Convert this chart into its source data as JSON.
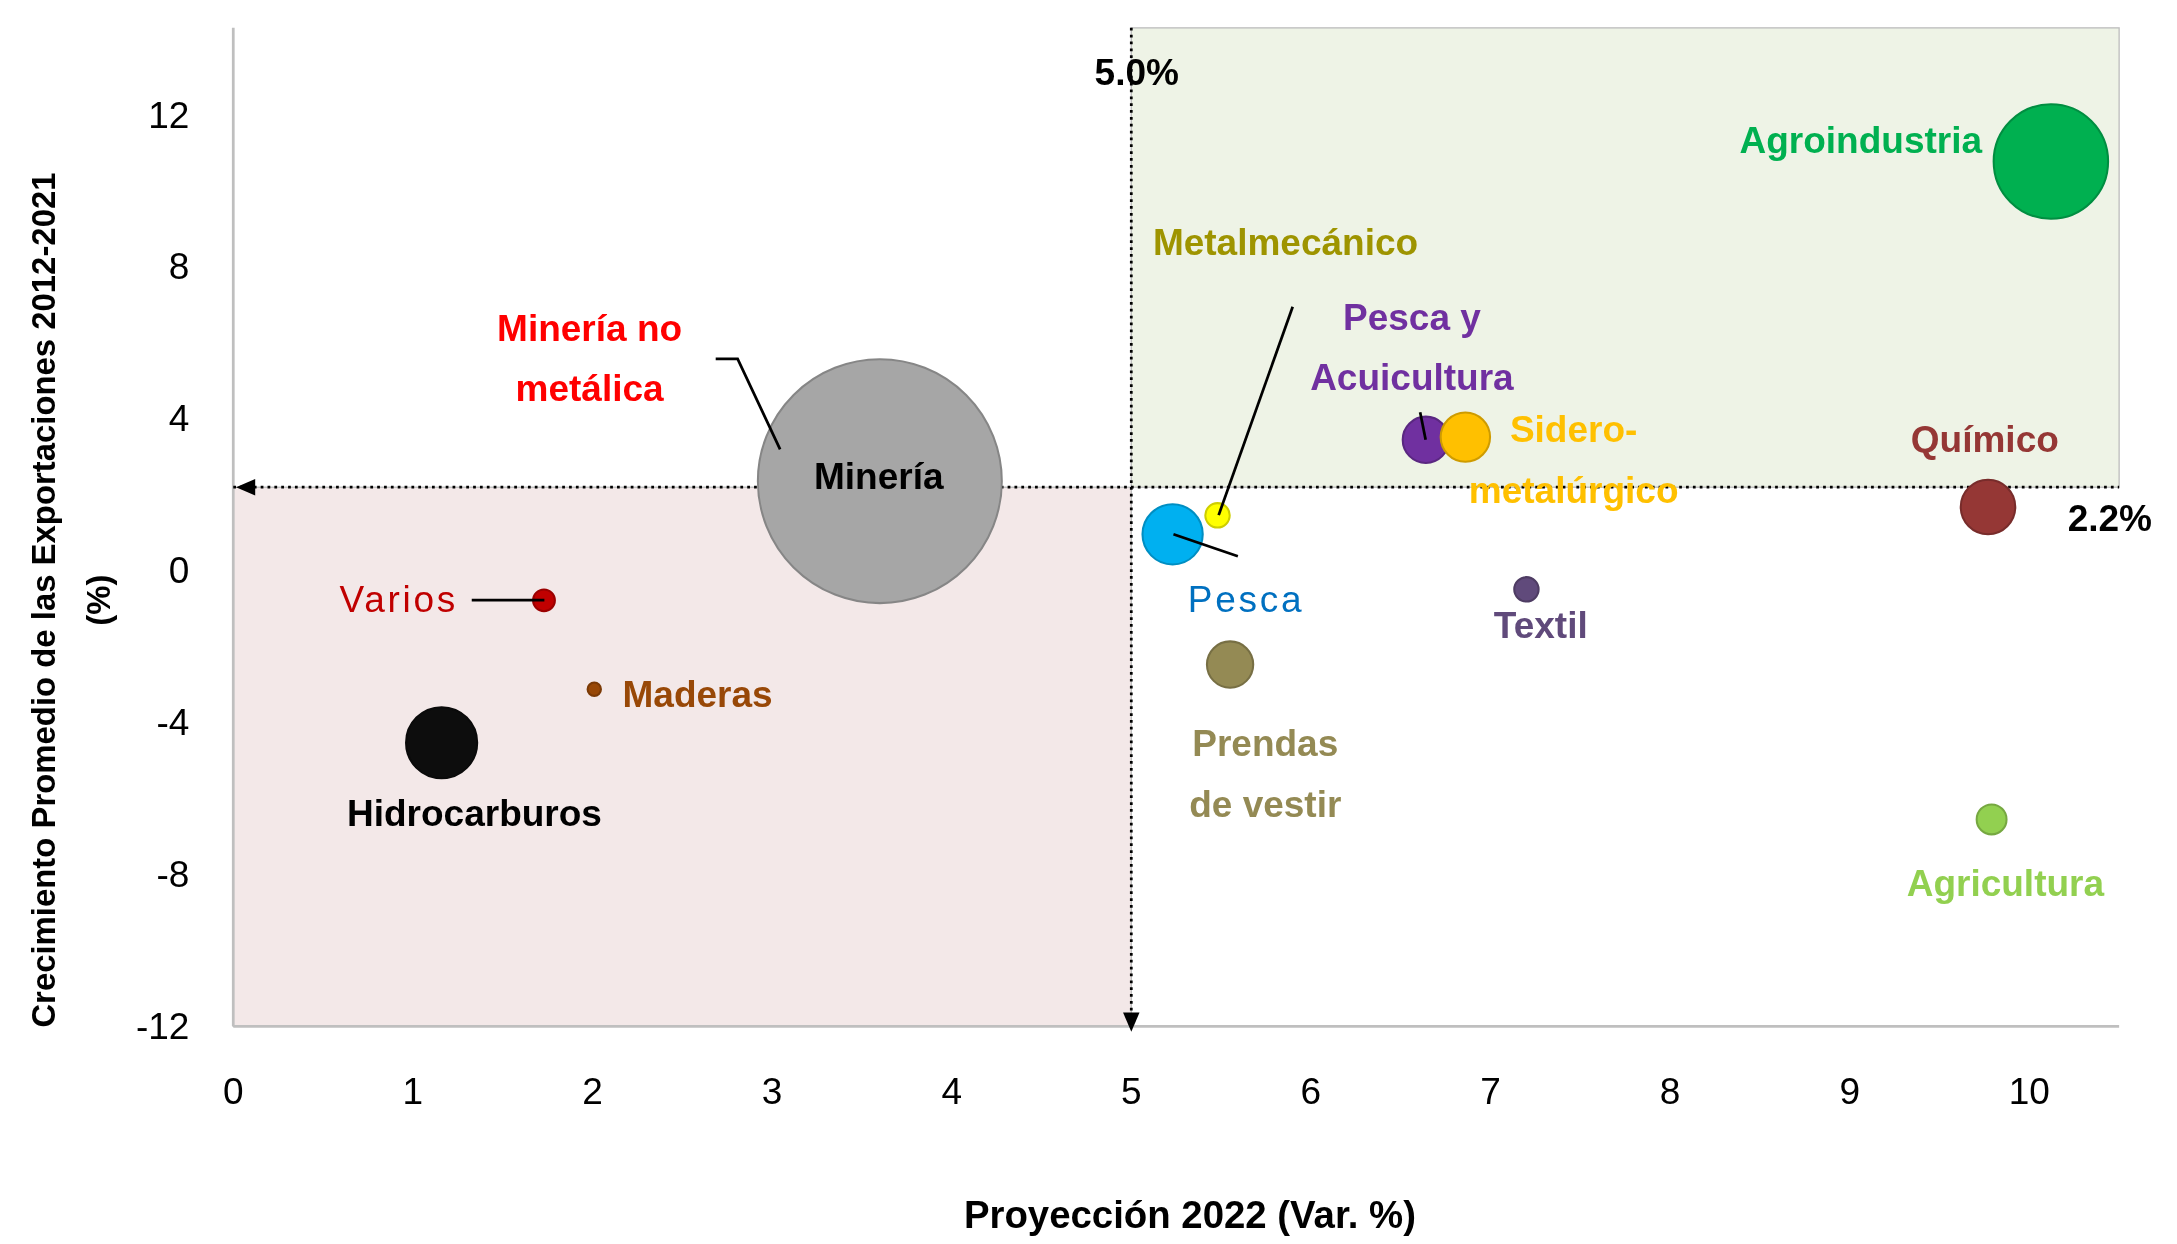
{
  "chart_data": {
    "type": "bubble",
    "xlabel": "Proyección 2022 (Var. %)",
    "ylabel": "Crecimiento Promedio de las Exportaciones 2012-2021 (%)",
    "xlim": [
      0,
      10.5
    ],
    "ylim": [
      -12,
      14.3
    ],
    "xticks": [
      0,
      1,
      2,
      3,
      4,
      5,
      6,
      7,
      8,
      9,
      10
    ],
    "yticks": [
      -12,
      -8,
      -4,
      0,
      4,
      8,
      12
    ],
    "grid": false,
    "series": [
      {
        "name": "Agroindustria",
        "color": "#00b050",
        "x": [
          10.12
        ],
        "values": [
          10.78
        ],
        "sizes": [
          0.22
        ]
      },
      {
        "name": "Metalmecánico",
        "color": "#ffff00",
        "x": [
          5.48
        ],
        "values": [
          1.46
        ],
        "sizes": [
          0.01
        ]
      },
      {
        "name": "Pesca y Acuicultura",
        "color": "#7030a0",
        "x": [
          6.64
        ],
        "values": [
          3.45
        ],
        "sizes": [
          0.036
        ]
      },
      {
        "name": "Sidero-metalúrgico",
        "color": "#ffc000",
        "x": [
          6.86
        ],
        "values": [
          3.52
        ],
        "sizes": [
          0.041
        ]
      },
      {
        "name": "Químico",
        "color": "#953735",
        "x": [
          9.77
        ],
        "values": [
          1.68
        ],
        "sizes": [
          0.05
        ]
      },
      {
        "name": "Pesca",
        "color": "#00b0f0",
        "x": [
          5.23
        ],
        "values": [
          0.96
        ],
        "sizes": [
          0.061
        ]
      },
      {
        "name": "Textil",
        "color": "#604a7b",
        "x": [
          7.2
        ],
        "values": [
          -0.49
        ],
        "sizes": [
          0.01
        ]
      },
      {
        "name": "Prendas de vestir",
        "color": "#948a54",
        "x": [
          5.55
        ],
        "values": [
          -2.47
        ],
        "sizes": [
          0.036
        ]
      },
      {
        "name": "Agricultura",
        "color": "#92d050",
        "x": [
          9.79
        ],
        "values": [
          -6.55
        ],
        "sizes": [
          0.015
        ]
      },
      {
        "name": "Minería",
        "color": "#a6a6a6",
        "x": [
          3.6
        ],
        "values": [
          2.36
        ],
        "sizes": [
          1
        ]
      },
      {
        "name": "Varios",
        "color": "#c00000",
        "x": [
          1.73
        ],
        "values": [
          -0.78
        ],
        "sizes": [
          0.008
        ]
      },
      {
        "name": "Maderas",
        "color": "#984807",
        "x": [
          2.01
        ],
        "values": [
          -3.12
        ],
        "sizes": [
          0.003
        ]
      },
      {
        "name": "Hidrocarburos",
        "color": "#0d0d0d",
        "x": [
          1.16
        ],
        "values": [
          -4.53
        ],
        "sizes": [
          0.085
        ]
      },
      {
        "name": "Minería no metálica",
        "color": "#ff0000",
        "x": [
          null
        ],
        "values": [
          null
        ],
        "sizes": [
          null
        ]
      }
    ],
    "ref_lines": [
      {
        "axis": "x",
        "value": 5,
        "label": "5.0%",
        "line_style": "dotted"
      },
      {
        "axis": "y",
        "value": 2.2,
        "label": "2.2%",
        "line_style": "dotted"
      }
    ],
    "bands": [
      {
        "axis": "x",
        "from": 5,
        "to": 10.5,
        "color": "#eef3e6"
      },
      {
        "axis": "x",
        "from": 0,
        "to": 5,
        "color": "#f3e8e8"
      }
    ]
  }
}
